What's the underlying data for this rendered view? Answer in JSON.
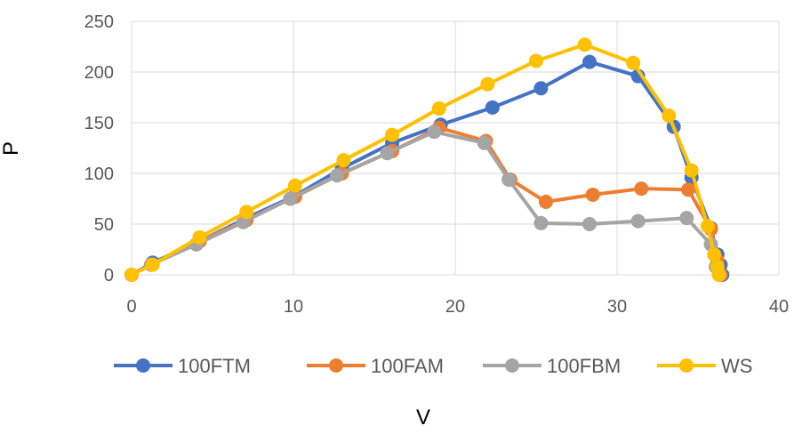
{
  "chart_data": {
    "type": "scatter",
    "title": "",
    "xlabel": "V",
    "ylabel": "P",
    "xlim": [
      0,
      40
    ],
    "ylim": [
      0,
      250
    ],
    "xticks": [
      "0",
      "10",
      "20",
      "30",
      "40"
    ],
    "yticks": [
      "0",
      "50",
      "100",
      "150",
      "200",
      "250"
    ],
    "grid": true,
    "legend_position": "bottom",
    "series": [
      {
        "name": "100FTM",
        "color": "#4472c4",
        "x": [
          0,
          1.3,
          4.2,
          7.1,
          10.1,
          13.0,
          16.1,
          19.1,
          22.3,
          25.3,
          28.3,
          31.3,
          33.5,
          34.6,
          35.8,
          36.2,
          36.4,
          36.5
        ],
        "y": [
          0,
          12,
          33,
          56,
          78,
          105,
          130,
          148,
          165,
          184,
          210,
          196,
          146,
          96,
          46,
          20,
          10,
          0
        ]
      },
      {
        "name": "100FAM",
        "color": "#ed7d31",
        "x": [
          0,
          1.2,
          4.2,
          7.1,
          10.1,
          13.0,
          16.1,
          19.0,
          21.9,
          23.4,
          25.6,
          28.5,
          31.5,
          34.4,
          35.8,
          36.2,
          36.4
        ],
        "y": [
          0,
          10,
          33,
          54,
          77,
          100,
          122,
          145,
          132,
          94,
          72,
          79,
          85,
          84,
          45,
          14,
          0
        ]
      },
      {
        "name": "100FBM",
        "color": "#a5a5a5",
        "x": [
          0,
          1.2,
          4.0,
          6.9,
          9.8,
          12.7,
          15.8,
          18.7,
          21.8,
          23.3,
          25.3,
          28.3,
          31.3,
          34.3,
          35.8,
          36.1,
          36.3
        ],
        "y": [
          0,
          10,
          30,
          52,
          75,
          98,
          120,
          141,
          130,
          94,
          51,
          50,
          53,
          56,
          30,
          8,
          0
        ]
      },
      {
        "name": "WS",
        "color": "#ffc000",
        "x": [
          0,
          1.3,
          4.2,
          7.1,
          10.1,
          13.1,
          16.1,
          19.0,
          22.0,
          25.0,
          28.0,
          31.0,
          33.2,
          34.6,
          35.6,
          36.0,
          36.2,
          36.3
        ],
        "y": [
          0,
          10,
          37,
          62,
          88,
          113,
          138,
          164,
          188,
          211,
          227,
          209,
          157,
          103,
          48,
          20,
          8,
          0
        ]
      }
    ]
  }
}
